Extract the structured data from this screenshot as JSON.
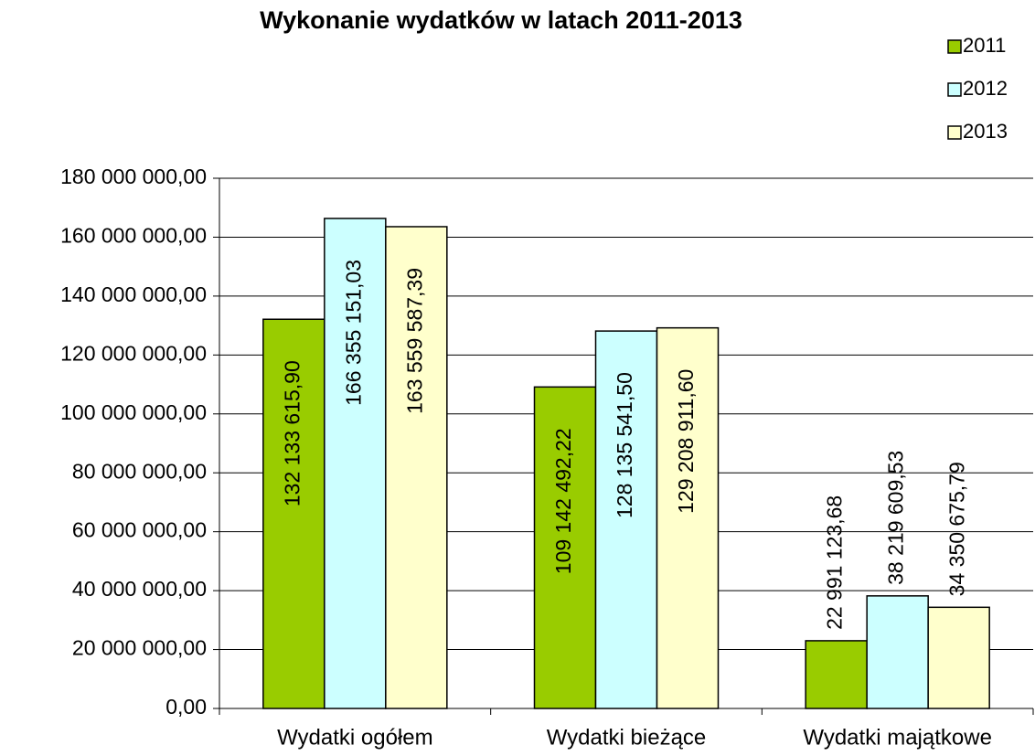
{
  "chart_data": {
    "type": "bar",
    "title": "Wykonanie wydatków w latach 2011-2013",
    "categories": [
      "Wydatki ogółem",
      "Wydatki bieżące",
      "Wydatki majątkowe"
    ],
    "series": [
      {
        "name": "2011",
        "color": "#99cc00",
        "values": [
          132133615.9,
          109142492.22,
          22991123.68
        ],
        "value_labels": [
          "132 133 615,90",
          "109 142 492,22",
          "22 991 123,68"
        ]
      },
      {
        "name": "2012",
        "color": "#ccffff",
        "values": [
          166355151.03,
          128135541.5,
          38219609.53
        ],
        "value_labels": [
          "166 355 151,03",
          "128 135 541,50",
          "38 219 609,53"
        ]
      },
      {
        "name": "2013",
        "color": "#ffffcc",
        "values": [
          163559587.39,
          129208911.6,
          34350675.79
        ],
        "value_labels": [
          "163 559 587,39",
          "129 208 911,60",
          "34 350 675,79"
        ]
      }
    ],
    "ylim": [
      0,
      180000000
    ],
    "yticks": [
      {
        "value": 0,
        "label": "0,00"
      },
      {
        "value": 20000000,
        "label": "20 000 000,00"
      },
      {
        "value": 40000000,
        "label": "40 000 000,00"
      },
      {
        "value": 60000000,
        "label": "60 000 000,00"
      },
      {
        "value": 80000000,
        "label": "80 000 000,00"
      },
      {
        "value": 100000000,
        "label": "100 000 000,00"
      },
      {
        "value": 120000000,
        "label": "120 000 000,00"
      },
      {
        "value": 140000000,
        "label": "140 000 000,00"
      },
      {
        "value": 160000000,
        "label": "160 000 000,00"
      },
      {
        "value": 180000000,
        "label": "180 000 000,00"
      }
    ],
    "grid": true,
    "legend": "top-right"
  }
}
